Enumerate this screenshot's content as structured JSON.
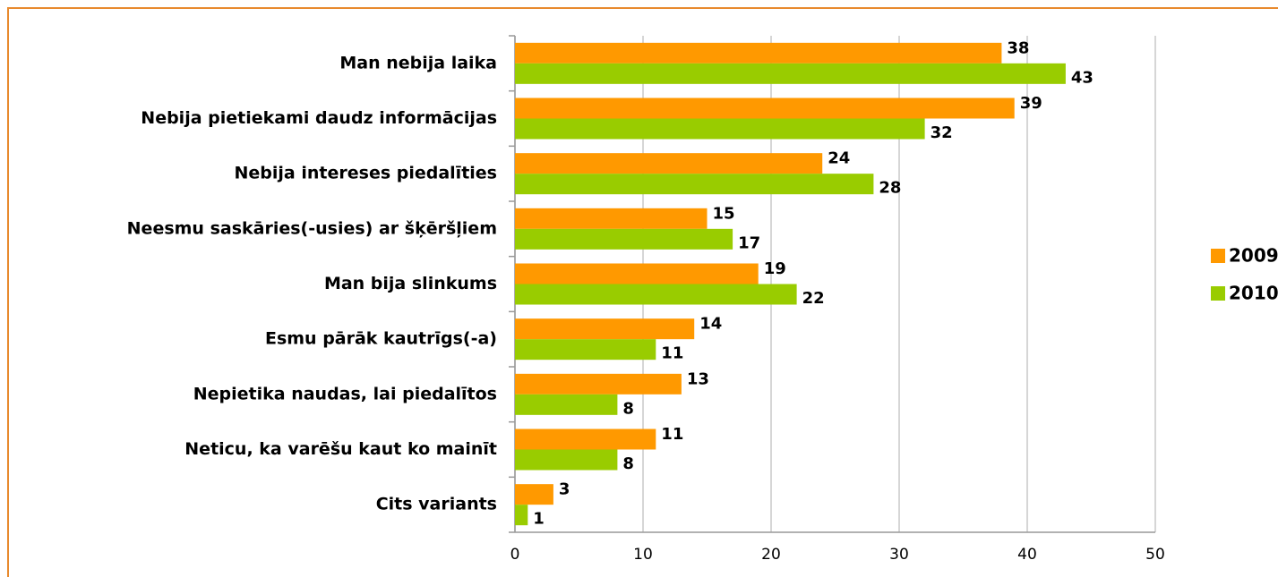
{
  "chart_data": {
    "type": "bar",
    "orientation": "horizontal",
    "categories": [
      "Man nebija laika",
      "Nebija pietiekami daudz informācijas",
      "Nebija intereses piedalīties",
      "Neesmu saskāries(-usies) ar šķēršļiem",
      "Man bija slinkums",
      "Esmu pārāk kautrīgs(-a)",
      "Nepietika naudas, lai piedalītos",
      "Neticu, ka varēšu kaut ko mainīt",
      "Cits variants"
    ],
    "series": [
      {
        "name": "2009",
        "color": "#ff9900",
        "values": [
          38,
          39,
          24,
          15,
          19,
          14,
          13,
          11,
          3
        ]
      },
      {
        "name": "2010",
        "color": "#99cc00",
        "values": [
          43,
          32,
          28,
          17,
          22,
          11,
          8,
          8,
          1
        ]
      }
    ],
    "xlim": [
      0,
      50
    ],
    "xticks": [
      0,
      10,
      20,
      30,
      40,
      50
    ],
    "grid": true,
    "legend": "right"
  }
}
